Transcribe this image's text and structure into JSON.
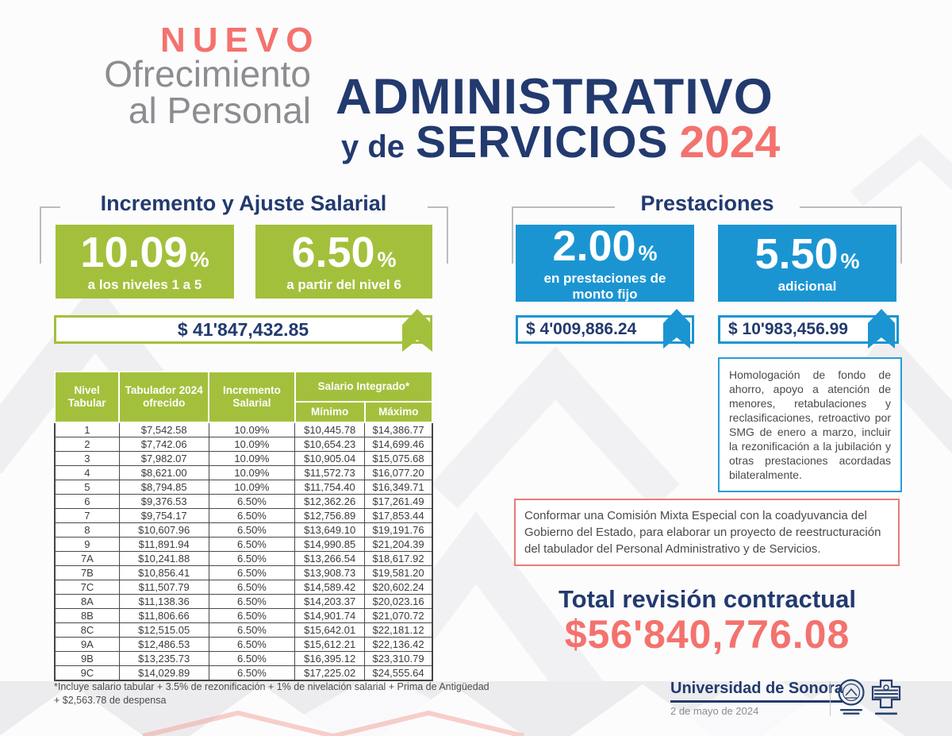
{
  "header": {
    "kicker": "NUEVO",
    "subtitle_line1": "Ofrecimiento",
    "subtitle_line2": "al Personal",
    "title_line1": "ADMINISTRATIVO",
    "title_connector": "y de",
    "title_line2": "SERVICIOS",
    "year": "2024"
  },
  "salary": {
    "title": "Incremento y Ajuste Salarial",
    "boxes": [
      {
        "value": "10.09",
        "unit": "%",
        "caption": "a los niveles 1 a 5"
      },
      {
        "value": "6.50",
        "unit": "%",
        "caption": "a partir del nivel 6"
      }
    ],
    "amount": "$ 41'847,432.85"
  },
  "prestaciones": {
    "title": "Prestaciones",
    "boxes": [
      {
        "value": "2.00",
        "unit": "%",
        "caption": "en prestaciones de monto fijo"
      },
      {
        "value": "5.50",
        "unit": "%",
        "caption": "adicional"
      }
    ],
    "amounts": [
      "$ 4'009,886.24",
      "$ 10'983,456.99"
    ]
  },
  "table": {
    "col_headers": {
      "nivel": "Nivel Tabular",
      "tabulador": "Tabulador 2024 ofrecido",
      "incremento": "Incremento Salarial",
      "integrado": "Salario Integrado*",
      "minimo": "Mínimo",
      "maximo": "Máximo"
    },
    "rows": [
      [
        "1",
        "$7,542.58",
        "10.09%",
        "$10,445.78",
        "$14,386.77"
      ],
      [
        "2",
        "$7,742.06",
        "10.09%",
        "$10,654.23",
        "$14,699.46"
      ],
      [
        "3",
        "$7,982.07",
        "10.09%",
        "$10,905.04",
        "$15,075.68"
      ],
      [
        "4",
        "$8,621.00",
        "10.09%",
        "$11,572.73",
        "$16,077.20"
      ],
      [
        "5",
        "$8,794.85",
        "10.09%",
        "$11,754.40",
        "$16,349.71"
      ],
      [
        "6",
        "$9,376.53",
        "6.50%",
        "$12,362.26",
        "$17,261.49"
      ],
      [
        "7",
        "$9,754.17",
        "6.50%",
        "$12,756.89",
        "$17,853.44"
      ],
      [
        "8",
        "$10,607.96",
        "6.50%",
        "$13,649.10",
        "$19,191.76"
      ],
      [
        "9",
        "$11,891.94",
        "6.50%",
        "$14,990.85",
        "$21,204.39"
      ],
      [
        "7A",
        "$10,241.88",
        "6.50%",
        "$13,266.54",
        "$18,617.92"
      ],
      [
        "7B",
        "$10,856.41",
        "6.50%",
        "$13,908.73",
        "$19,581.20"
      ],
      [
        "7C",
        "$11,507.79",
        "6.50%",
        "$14,589.42",
        "$20,602.24"
      ],
      [
        "8A",
        "$11,138.36",
        "6.50%",
        "$14,203.37",
        "$20,023.16"
      ],
      [
        "8B",
        "$11,806.66",
        "6.50%",
        "$14,901.74",
        "$21,070.72"
      ],
      [
        "8C",
        "$12,515.05",
        "6.50%",
        "$15,642.01",
        "$22,181.12"
      ],
      [
        "9A",
        "$12,486.53",
        "6.50%",
        "$15,612.21",
        "$22,136.42"
      ],
      [
        "9B",
        "$13,235.73",
        "6.50%",
        "$16,395.12",
        "$23,310.79"
      ],
      [
        "9C",
        "$14,029.89",
        "6.50%",
        "$17,225.02",
        "$24,555.64"
      ]
    ],
    "footnote": "*Incluye salario tabular + 3.5% de rezonificación + 1% de nivelación salarial + Prima de Antigüedad + $2,563.78 de despensa"
  },
  "notes": {
    "homologacion": "Homologación de fondo de ahorro, apoyo a atención de menores, retabulaciones y reclasificaciones, retroactivo por SMG de enero a marzo, incluir la rezonificación a la jubilación y otras prestaciones acordadas bilateralmente.",
    "comision": "Conformar una Comisión Mixta Especial con la coadyuvancia del Gobierno del Estado, para elaborar un proyecto de reestructuración del tabulador del Personal Administrativo y de Servicios."
  },
  "total": {
    "label": "Total revisión contractual",
    "amount": "$56'840,776.08"
  },
  "footer": {
    "org": "Universidad de Sonora",
    "date": "2 de mayo de 2024",
    "logos": [
      "unison-seal-logo",
      "unison-shield-logo"
    ]
  },
  "colors": {
    "green": "#a3c03c",
    "blue": "#1b95d2",
    "navy": "#223a6e",
    "coral": "#f4726d",
    "gray_text": "#8b8d90",
    "note_text": "#4a4a4a",
    "red_border": "#e87c72"
  }
}
